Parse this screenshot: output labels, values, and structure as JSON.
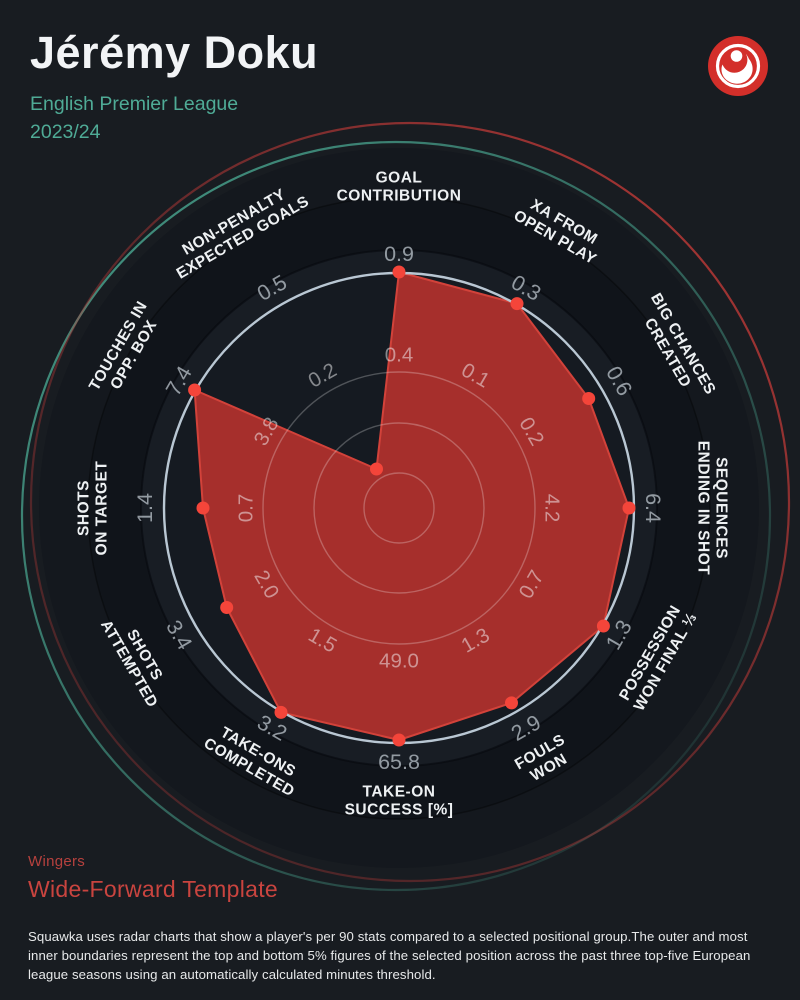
{
  "header": {
    "player_name": "Jérémy Doku",
    "league": "English Premier League",
    "season": "2023/24",
    "logo_name": "squawka-logo"
  },
  "footer": {
    "position_group": "Wingers",
    "template_name": "Wide-Forward Template",
    "description": "Squawka uses radar charts that show a player's per 90 stats compared to a selected positional group.The outer and most inner boundaries represent the top and bottom 5% figures of the selected position across the past three top-five European league seasons using an automatically calculated minutes threshold."
  },
  "colors": {
    "background": "#181c21",
    "title_text": "#f2f4f6",
    "subtitle_teal": "#4fab96",
    "position_red": "#b6413e",
    "template_red": "#c9443f",
    "body_text": "#e7e9ea",
    "axis_label_text": "#eef1f3",
    "value_label_text": "rgba(223,232,240,0.62)",
    "mid_label_text": "rgba(245,246,248,0.5)",
    "polygon_fill": "rgba(196,52,47,0.83)",
    "polygon_stroke": "#d2423a",
    "point_red": "#f4453a",
    "outer_ring": "#b9c7d3",
    "grid_line": "rgba(255,255,255,0.25)",
    "band_outer": "#14181e",
    "band_label": "#10141a",
    "band_inner_rim": "#181d24",
    "disk_fill": "#151a21",
    "arc_teal": "#47a18c",
    "arc_red": "#b83836",
    "logo_red": "#d32f2a",
    "logo_white": "#ffffff"
  },
  "chart_data": {
    "type": "radar",
    "title": "Jérémy Doku per-90 radar, Wide-Forward Template, Wingers, English Premier League 2023/24",
    "legend_note": "Outer value = top 5% boundary of positional group; innermost circle = bottom 5% boundary; middle label = midpoint gridline value; red polygon = player per-90 figures",
    "axes": [
      {
        "label": [
          "GOAL",
          "CONTRIBUTION"
        ],
        "value": "0.9",
        "mid": "0.4",
        "point_r": 236,
        "point_norm": 1.0,
        "name_r": 322
      },
      {
        "label": [
          "XA FROM",
          "OPEN PLAY"
        ],
        "value": "0.3",
        "mid": "0.1",
        "point_r": 236,
        "point_norm": 1.0,
        "name_r": 322
      },
      {
        "label": [
          "BIG CHANCES",
          "CREATED"
        ],
        "value": "0.6",
        "mid": "0.2",
        "point_r": 219,
        "point_norm": 0.93,
        "name_r": 320
      },
      {
        "label": [
          "SEQUENCES",
          "ENDING IN SHOT"
        ],
        "value": "6.4",
        "mid": "4.2",
        "point_r": 230,
        "point_norm": 0.98,
        "name_r": 314
      },
      {
        "label": [
          "POSSESSION",
          "WON FINAL ⅓"
        ],
        "value": "1.3",
        "mid": "0.7",
        "point_r": 236,
        "point_norm": 1.0,
        "name_r": 298
      },
      {
        "label": [
          "FOULS",
          "WON"
        ],
        "value": "2.9",
        "mid": "1.3",
        "point_r": 225,
        "point_norm": 0.96,
        "name_r": 290
      },
      {
        "label": [
          "TAKE-ON",
          "SUCCESS [%]"
        ],
        "value": "65.8",
        "mid": "49.0",
        "point_r": 232,
        "point_norm": 0.99,
        "name_r": 292
      },
      {
        "label": [
          "TAKE-ONS",
          "COMPLETED"
        ],
        "value": "3.2",
        "mid": "1.5",
        "point_r": 236,
        "point_norm": 1.0,
        "name_r": 290
      },
      {
        "label": [
          "SHOTS",
          "ATTEMPTED"
        ],
        "value": "3.4",
        "mid": "2.0",
        "point_r": 199,
        "point_norm": 0.85,
        "name_r": 302
      },
      {
        "label": [
          "SHOTS",
          "ON TARGET"
        ],
        "value": "1.4",
        "mid": "0.7",
        "point_r": 196,
        "point_norm": 0.83,
        "name_r": 307
      },
      {
        "label": [
          "TOUCHES IN",
          "OPP. BOX"
        ],
        "value": "7.4",
        "mid": "3.8",
        "point_r": 236,
        "point_norm": 1.0,
        "name_r": 316
      },
      {
        "label": [
          "NON-PENALTY",
          "EXPECTED GOALS"
        ],
        "value": "0.5",
        "mid": "0.2",
        "point_r": 45,
        "point_norm": 0.19,
        "name_r": 322
      }
    ],
    "layout": {
      "center": [
        399,
        508
      ],
      "outer_ring_r": 235,
      "grid_r": [
        35,
        85,
        136
      ],
      "value_label_r": 254,
      "mid_label_r": 153,
      "band_r": [
        360,
        311,
        258
      ],
      "arc_teal": {
        "c": [
          396,
          516
        ],
        "r": 374
      },
      "arc_red": {
        "c": [
          410,
          502
        ],
        "r": 379
      },
      "point_dot_r": 6.5
    }
  }
}
